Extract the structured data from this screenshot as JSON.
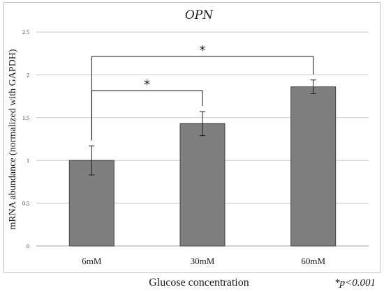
{
  "chart_data": {
    "type": "bar",
    "title": "OPN",
    "categories": [
      "6mM",
      "30mM",
      "60mM"
    ],
    "values": [
      1.0,
      1.43,
      1.86
    ],
    "errors": [
      0.17,
      0.14,
      0.08
    ],
    "xlabel": "Glucose concentration",
    "ylabel": "mRNA abundance (normalized with GAPDH)",
    "ylim": [
      0,
      2.5
    ],
    "yticks": [
      "0",
      "0.5",
      "1",
      "1.5",
      "2",
      "2.5"
    ],
    "grid": true,
    "bar_color": "#7f7f7f",
    "significance": [
      {
        "from": 0,
        "to": 1,
        "label": "*"
      },
      {
        "from": 0,
        "to": 2,
        "label": "*"
      }
    ],
    "footnote": "*p<0.001"
  }
}
